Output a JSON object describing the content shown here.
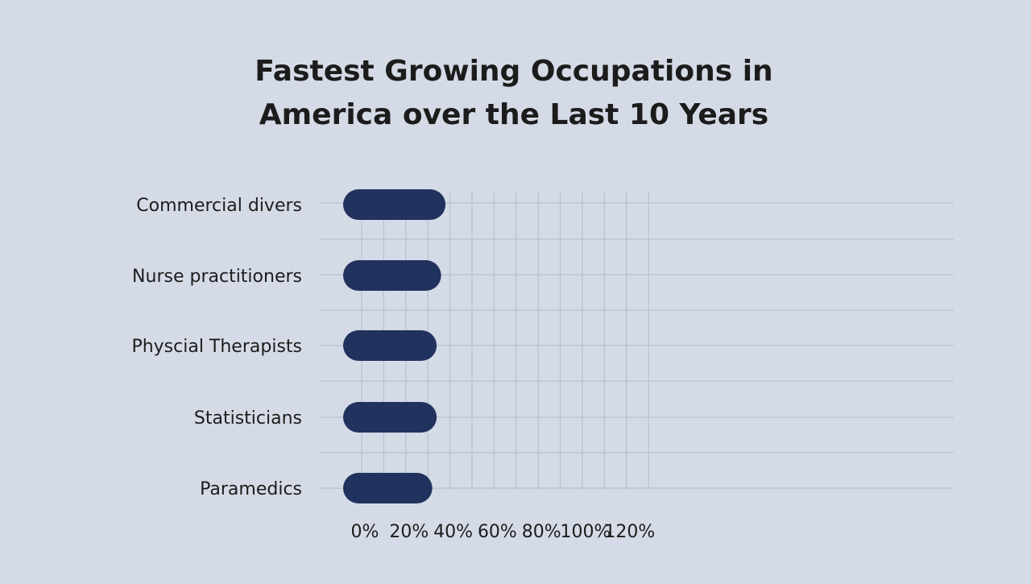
{
  "chart_data": {
    "type": "bar",
    "orientation": "horizontal",
    "title_lines": [
      "Fastest Growing Occupations in",
      "America over the Last 10 Years"
    ],
    "categories": [
      "Commercial divers",
      "Nurse practitioners",
      "Physcial Therapists",
      "Statisticians",
      "Paramedics"
    ],
    "values": [
      38,
      36,
      34,
      34,
      32
    ],
    "x_ticks": [
      "0%",
      "20%",
      "40%",
      "60%",
      "80%",
      "100%",
      "120%"
    ],
    "xlim": [
      0,
      130
    ],
    "value_unit": "%",
    "grid": true,
    "legend": "none"
  },
  "colors": {
    "background": "#d5dbe6",
    "bar": "#21325e",
    "grid": "#b9c0d3",
    "text": "#1c1c1c"
  }
}
